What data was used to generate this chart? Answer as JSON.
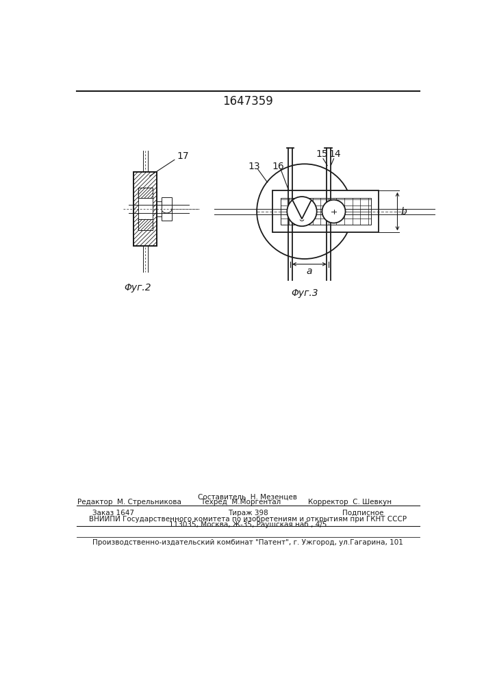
{
  "title_number": "1647359",
  "fig2_label": "Φуг.2",
  "fig3_label": "Φуг.3",
  "label_17": "17",
  "label_13": "13",
  "label_14": "14",
  "label_15": "15",
  "label_16": "16",
  "label_a": "a",
  "label_b": "b",
  "compiler_line": "Составитель  Н. Мезенцев",
  "editor_line_left": "Редактор  М. Стрельникова",
  "editor_line_mid": "Техред  М.Моргентал",
  "editor_line_right": "Корректор  С. Шевкун",
  "order_left": "Заказ 1647",
  "order_mid": "Тираж 398",
  "order_right": "Подписное",
  "vniiipi_line1": "ВНИИПИ Государственного комитета по изобретениям и открытиям при ГКНТ СССР",
  "vniiipi_line2": "113035, Москва, Ж-35, Раушская наб., 4/5",
  "patent_line": "Производственно-издательский комбинат \"Патент\", г. Ужгород, ул.Гагарина, 101",
  "bg_color": "#ffffff",
  "line_color": "#1a1a1a"
}
